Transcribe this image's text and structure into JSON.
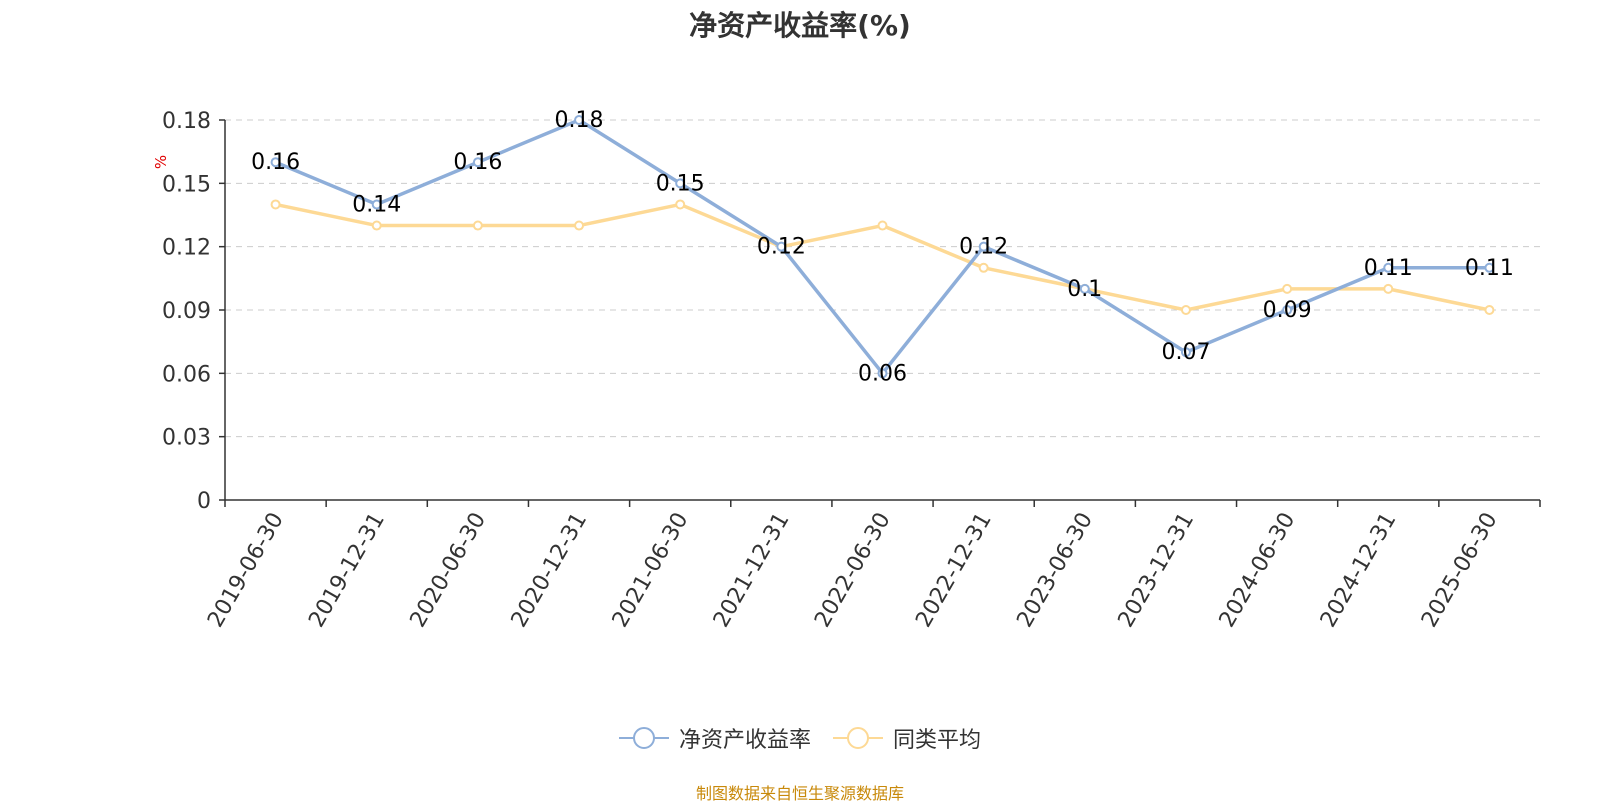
{
  "chart_data": {
    "type": "line",
    "title": "净资产收益率(%)",
    "ylabel": "%",
    "xlabel": "",
    "categories": [
      "2019-06-30",
      "2019-12-31",
      "2020-06-30",
      "2020-12-31",
      "2021-06-30",
      "2021-12-31",
      "2022-06-30",
      "2022-12-31",
      "2023-06-30",
      "2023-12-31",
      "2024-06-30",
      "2024-12-31",
      "2025-06-30"
    ],
    "ylim": [
      0,
      0.18
    ],
    "yticks": [
      "0",
      "0.03",
      "0.06",
      "0.09",
      "0.12",
      "0.15",
      "0.18"
    ],
    "grid": true,
    "legend_position": "bottom-center",
    "series": [
      {
        "name": "净资产收益率",
        "color": "#8eaed9",
        "show_labels": true,
        "values": [
          0.16,
          0.14,
          0.16,
          0.18,
          0.15,
          0.12,
          0.06,
          0.12,
          0.1,
          0.07,
          0.09,
          0.11,
          0.11
        ],
        "labels": [
          "0.16",
          "0.14",
          "0.16",
          "0.18",
          "0.15",
          "0.12",
          "0.06",
          "0.12",
          "0.1",
          "0.07",
          "0.09",
          "0.11",
          "0.11"
        ]
      },
      {
        "name": "同类平均",
        "color": "#fdd995",
        "show_labels": false,
        "values": [
          0.14,
          0.13,
          0.13,
          0.13,
          0.14,
          0.12,
          0.13,
          0.11,
          0.1,
          0.09,
          0.1,
          0.1,
          0.09
        ]
      }
    ]
  },
  "source_note": "制图数据来自恒生聚源数据库"
}
